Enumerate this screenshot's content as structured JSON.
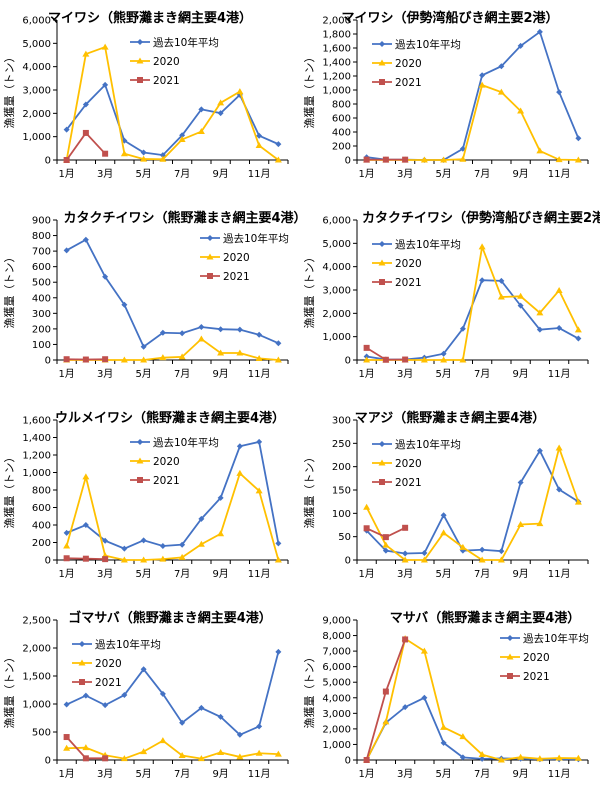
{
  "colors": {
    "avg": "#4472C4",
    "y2020": "#FFC000",
    "y2021": "#C0504D"
  },
  "chart_data": [
    {
      "type": "line",
      "title": "マイワシ（熊野灘まき網主要4港）",
      "ylabel": "漁獲量（トン）",
      "xlabel": "",
      "categories": [
        "1月",
        "2月",
        "3月",
        "4月",
        "5月",
        "6月",
        "7月",
        "8月",
        "9月",
        "10月",
        "11月",
        "12月"
      ],
      "xtick_labels": [
        "1月",
        "3月",
        "5月",
        "7月",
        "9月",
        "11月"
      ],
      "ylim": [
        0,
        6000
      ],
      "yticks": [
        0,
        1000,
        2000,
        3000,
        4000,
        5000,
        6000
      ],
      "ytick_labels": [
        "0",
        "1,000",
        "2,000",
        "3,000",
        "4,000",
        "5,000",
        "6,000"
      ],
      "legend_position": "top-center",
      "series": [
        {
          "name": "過去10年平均",
          "marker": "diamond",
          "values": [
            1300,
            2380,
            3220,
            830,
            320,
            210,
            1060,
            2170,
            2010,
            2790,
            1040,
            680
          ]
        },
        {
          "name": "2020",
          "marker": "triangle",
          "values": [
            0,
            4540,
            4840,
            270,
            40,
            30,
            880,
            1220,
            2450,
            2930,
            620,
            0
          ]
        },
        {
          "name": "2021",
          "marker": "square",
          "values": [
            0,
            1160,
            270
          ]
        }
      ]
    },
    {
      "type": "line",
      "title": "マイワシ（伊勢湾船びき網主要2港）",
      "ylabel": "漁獲量（トン）",
      "xlabel": "",
      "categories": [
        "1月",
        "2月",
        "3月",
        "4月",
        "5月",
        "6月",
        "7月",
        "8月",
        "9月",
        "10月",
        "11月",
        "12月"
      ],
      "xtick_labels": [
        "1月",
        "3月",
        "5月",
        "7月",
        "9月",
        "11月"
      ],
      "ylim": [
        0,
        2000
      ],
      "yticks": [
        0,
        200,
        400,
        600,
        800,
        1000,
        1200,
        1400,
        1600,
        1800,
        2000
      ],
      "ytick_labels": [
        "0",
        "200",
        "400",
        "600",
        "800",
        "1,000",
        "1,200",
        "1,400",
        "1,600",
        "1,800",
        "2,000"
      ],
      "legend_position": "top-left",
      "series": [
        {
          "name": "過去10年平均",
          "marker": "diamond",
          "values": [
            40,
            5,
            5,
            0,
            0,
            160,
            1210,
            1340,
            1630,
            1830,
            970,
            310
          ]
        },
        {
          "name": "2020",
          "marker": "triangle",
          "values": [
            0,
            0,
            0,
            0,
            0,
            10,
            1070,
            970,
            700,
            130,
            5,
            0
          ]
        },
        {
          "name": "2021",
          "marker": "square",
          "values": [
            5,
            5,
            5
          ]
        }
      ]
    },
    {
      "type": "line",
      "title": "カタクチイワシ（熊野灘まき網主要4港）",
      "ylabel": "漁獲量（トン）",
      "xlabel": "",
      "categories": [
        "1月",
        "2月",
        "3月",
        "4月",
        "5月",
        "6月",
        "7月",
        "8月",
        "9月",
        "10月",
        "11月",
        "12月"
      ],
      "xtick_labels": [
        "1月",
        "3月",
        "5月",
        "7月",
        "9月",
        "11月"
      ],
      "ylim": [
        0,
        900
      ],
      "yticks": [
        0,
        100,
        200,
        300,
        400,
        500,
        600,
        700,
        800,
        900
      ],
      "ytick_labels": [
        "0",
        "100",
        "200",
        "300",
        "400",
        "500",
        "600",
        "700",
        "800",
        "900"
      ],
      "legend_position": "top-right",
      "series": [
        {
          "name": "過去10年平均",
          "marker": "diamond",
          "values": [
            705,
            773,
            535,
            355,
            85,
            175,
            172,
            212,
            198,
            195,
            162,
            108
          ]
        },
        {
          "name": "2020",
          "marker": "triangle",
          "values": [
            0,
            0,
            0,
            0,
            0,
            15,
            20,
            135,
            45,
            45,
            10,
            0
          ]
        },
        {
          "name": "2021",
          "marker": "square",
          "values": [
            5,
            3,
            5
          ]
        }
      ]
    },
    {
      "type": "line",
      "title": "カタクチイワシ（伊勢湾船びき網主要2港）",
      "ylabel": "漁獲量（トン）",
      "xlabel": "",
      "categories": [
        "1月",
        "2月",
        "3月",
        "4月",
        "5月",
        "6月",
        "7月",
        "8月",
        "9月",
        "10月",
        "11月",
        "12月"
      ],
      "xtick_labels": [
        "1月",
        "3月",
        "5月",
        "7月",
        "9月",
        "11月"
      ],
      "ylim": [
        0,
        6000
      ],
      "yticks": [
        0,
        1000,
        2000,
        3000,
        4000,
        5000,
        6000
      ],
      "ytick_labels": [
        "0",
        "1,000",
        "2,000",
        "3,000",
        "4,000",
        "5,000",
        "6,000"
      ],
      "legend_position": "top-left",
      "series": [
        {
          "name": "過去10年平均",
          "marker": "diamond",
          "values": [
            150,
            20,
            20,
            100,
            270,
            1340,
            3420,
            3390,
            2330,
            1300,
            1370,
            920
          ]
        },
        {
          "name": "2020",
          "marker": "triangle",
          "values": [
            0,
            0,
            0,
            0,
            0,
            0,
            4850,
            2700,
            2730,
            2020,
            2980,
            1290
          ]
        },
        {
          "name": "2021",
          "marker": "square",
          "values": [
            520,
            10,
            20
          ]
        }
      ]
    },
    {
      "type": "line",
      "title": "ウルメイワシ（熊野灘まき網主要4港）",
      "ylabel": "漁獲量（トン）",
      "xlabel": "",
      "categories": [
        "1月",
        "2月",
        "3月",
        "4月",
        "5月",
        "6月",
        "7月",
        "8月",
        "9月",
        "10月",
        "11月",
        "12月"
      ],
      "xtick_labels": [
        "1月",
        "3月",
        "5月",
        "7月",
        "9月",
        "11月"
      ],
      "ylim": [
        0,
        1600
      ],
      "yticks": [
        0,
        200,
        400,
        600,
        800,
        1000,
        1200,
        1400,
        1600
      ],
      "ytick_labels": [
        "0",
        "200",
        "400",
        "600",
        "800",
        "1,000",
        "1,200",
        "1,400",
        "1,600"
      ],
      "legend_position": "top-center",
      "series": [
        {
          "name": "過去10年平均",
          "marker": "diamond",
          "values": [
            310,
            400,
            220,
            130,
            225,
            160,
            175,
            470,
            710,
            1300,
            1350,
            190
          ]
        },
        {
          "name": "2020",
          "marker": "triangle",
          "values": [
            160,
            950,
            50,
            0,
            0,
            10,
            30,
            180,
            300,
            990,
            790,
            0
          ]
        },
        {
          "name": "2021",
          "marker": "square",
          "values": [
            20,
            15,
            10
          ]
        }
      ]
    },
    {
      "type": "line",
      "title": "マアジ（熊野灘まき網主要4港）",
      "ylabel": "漁獲量（トン）",
      "xlabel": "",
      "categories": [
        "1月",
        "2月",
        "3月",
        "4月",
        "5月",
        "6月",
        "7月",
        "8月",
        "9月",
        "10月",
        "11月",
        "12月"
      ],
      "xtick_labels": [
        "1月",
        "3月",
        "5月",
        "7月",
        "9月",
        "11月"
      ],
      "ylim": [
        0,
        300
      ],
      "yticks": [
        0,
        50,
        100,
        150,
        200,
        250,
        300
      ],
      "ytick_labels": [
        "0",
        "50",
        "100",
        "150",
        "200",
        "250",
        "300"
      ],
      "legend_position": "top-left",
      "series": [
        {
          "name": "過去10年平均",
          "marker": "diamond",
          "values": [
            63,
            20,
            14,
            15,
            96,
            20,
            22,
            19,
            166,
            234,
            151,
            125
          ]
        },
        {
          "name": "2020",
          "marker": "triangle",
          "values": [
            113,
            32,
            0,
            0,
            58,
            27,
            0,
            0,
            76,
            78,
            240,
            124
          ]
        },
        {
          "name": "2021",
          "marker": "square",
          "values": [
            68,
            49,
            69
          ]
        }
      ]
    },
    {
      "type": "line",
      "title": "ゴマサバ（熊野灘まき網主要4港）",
      "ylabel": "漁獲量（トン）",
      "xlabel": "",
      "categories": [
        "1月",
        "2月",
        "3月",
        "4月",
        "5月",
        "6月",
        "7月",
        "8月",
        "9月",
        "10月",
        "11月",
        "12月"
      ],
      "xtick_labels": [
        "1月",
        "3月",
        "5月",
        "7月",
        "9月",
        "11月"
      ],
      "ylim": [
        0,
        2500
      ],
      "yticks": [
        0,
        500,
        1000,
        1500,
        2000,
        2500
      ],
      "ytick_labels": [
        "0",
        "500",
        "1,000",
        "1,500",
        "2,000",
        "2,500"
      ],
      "legend_position": "top-left",
      "series": [
        {
          "name": "過去10年平均",
          "marker": "diamond",
          "values": [
            990,
            1150,
            980,
            1160,
            1620,
            1180,
            665,
            930,
            770,
            450,
            600,
            1930
          ]
        },
        {
          "name": "2020",
          "marker": "triangle",
          "values": [
            210,
            220,
            85,
            25,
            150,
            345,
            80,
            25,
            135,
            55,
            120,
            105
          ]
        },
        {
          "name": "2021",
          "marker": "square",
          "values": [
            410,
            30,
            30
          ]
        }
      ]
    },
    {
      "type": "line",
      "title": "マサバ（熊野灘まき網主要4港）",
      "ylabel": "漁獲量（トン）",
      "xlabel": "",
      "categories": [
        "1月",
        "2月",
        "3月",
        "4月",
        "5月",
        "6月",
        "7月",
        "8月",
        "9月",
        "10月",
        "11月",
        "12月"
      ],
      "xtick_labels": [
        "1月",
        "3月",
        "5月",
        "7月",
        "9月",
        "11月"
      ],
      "ylim": [
        0,
        9000
      ],
      "yticks": [
        0,
        1000,
        2000,
        3000,
        4000,
        5000,
        6000,
        7000,
        8000,
        9000
      ],
      "ytick_labels": [
        "0",
        "1,000",
        "2,000",
        "3,000",
        "4,000",
        "5,000",
        "6,000",
        "7,000",
        "8,000",
        "9,000"
      ],
      "legend_position": "top-right",
      "series": [
        {
          "name": "過去10年平均",
          "marker": "diamond",
          "values": [
            0,
            2400,
            3400,
            4000,
            1100,
            170,
            70,
            100,
            80,
            50,
            50,
            50
          ]
        },
        {
          "name": "2020",
          "marker": "triangle",
          "values": [
            0,
            2450,
            7800,
            7000,
            2100,
            1500,
            350,
            0,
            180,
            80,
            130,
            110
          ]
        },
        {
          "name": "2021",
          "marker": "square",
          "values": [
            0,
            4400,
            7750
          ]
        }
      ]
    }
  ]
}
